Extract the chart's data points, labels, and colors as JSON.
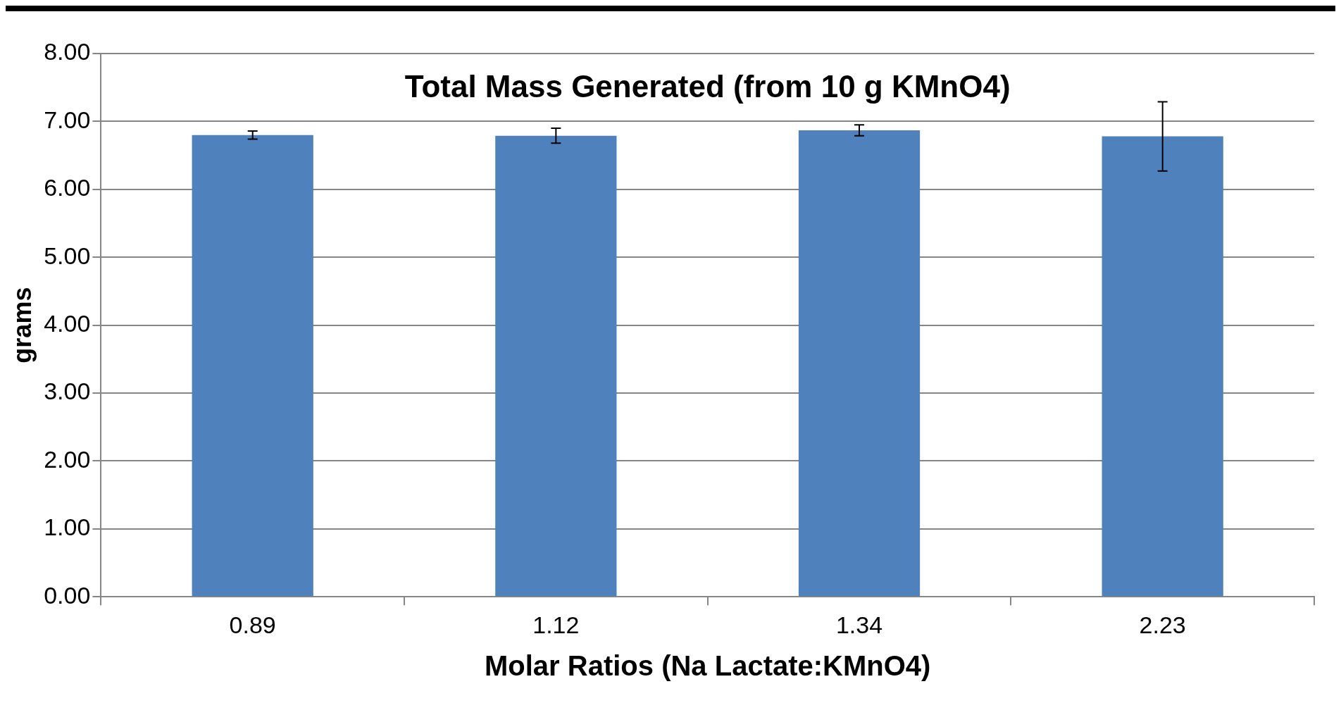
{
  "chart_data": {
    "type": "bar",
    "title": "Total Mass Generated (from 10 g KMnO4)",
    "xlabel": "Molar Ratios (Na Lactate:KMnO4)",
    "ylabel": "grams",
    "categories": [
      "0.89",
      "1.12",
      "1.34",
      "2.23"
    ],
    "values": [
      6.8,
      6.79,
      6.87,
      6.78
    ],
    "errors": [
      0.06,
      0.11,
      0.08,
      0.51
    ],
    "color": "#4f81bd",
    "ylim": [
      0,
      8
    ],
    "yticks": [
      {
        "value": 0,
        "label": "0.00"
      },
      {
        "value": 1,
        "label": "1.00"
      },
      {
        "value": 2,
        "label": "2.00"
      },
      {
        "value": 3,
        "label": "3.00"
      },
      {
        "value": 4,
        "label": "4.00"
      },
      {
        "value": 5,
        "label": "5.00"
      },
      {
        "value": 6,
        "label": "6.00"
      },
      {
        "value": 7,
        "label": "7.00"
      },
      {
        "value": 8,
        "label": "8.00"
      }
    ],
    "grid": "y",
    "legend": false
  }
}
